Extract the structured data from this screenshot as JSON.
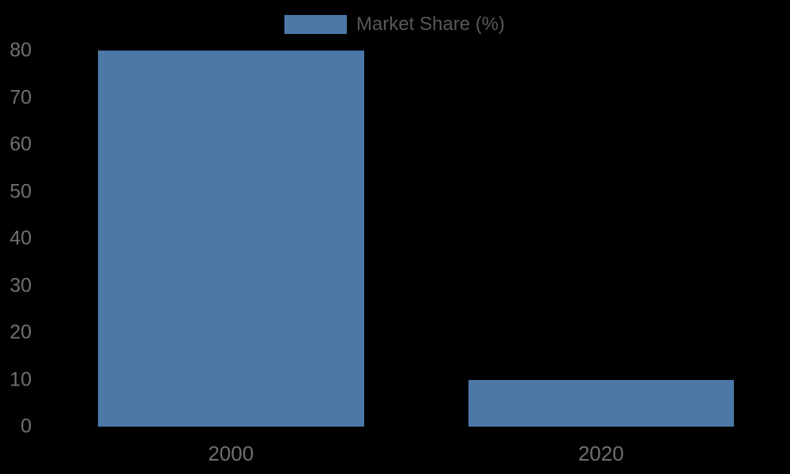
{
  "chart_data": {
    "type": "bar",
    "title": "",
    "xlabel": "",
    "ylabel": "",
    "categories": [
      "2000",
      "2020"
    ],
    "series": [
      {
        "name": "Market Share (%)",
        "values": [
          80,
          10
        ]
      }
    ],
    "ylim": [
      0,
      80
    ],
    "yticks": [
      0,
      10,
      20,
      30,
      40,
      50,
      60,
      70,
      80
    ],
    "grid": false,
    "legend_position": "top-center"
  },
  "legend": {
    "label": "Market Share (%)"
  },
  "colors": {
    "background": "#000000",
    "bar": "#4c78a8",
    "axis_label": "#6e7071",
    "legend_label": "#57585a",
    "tick_mark": "#0d0f12"
  }
}
